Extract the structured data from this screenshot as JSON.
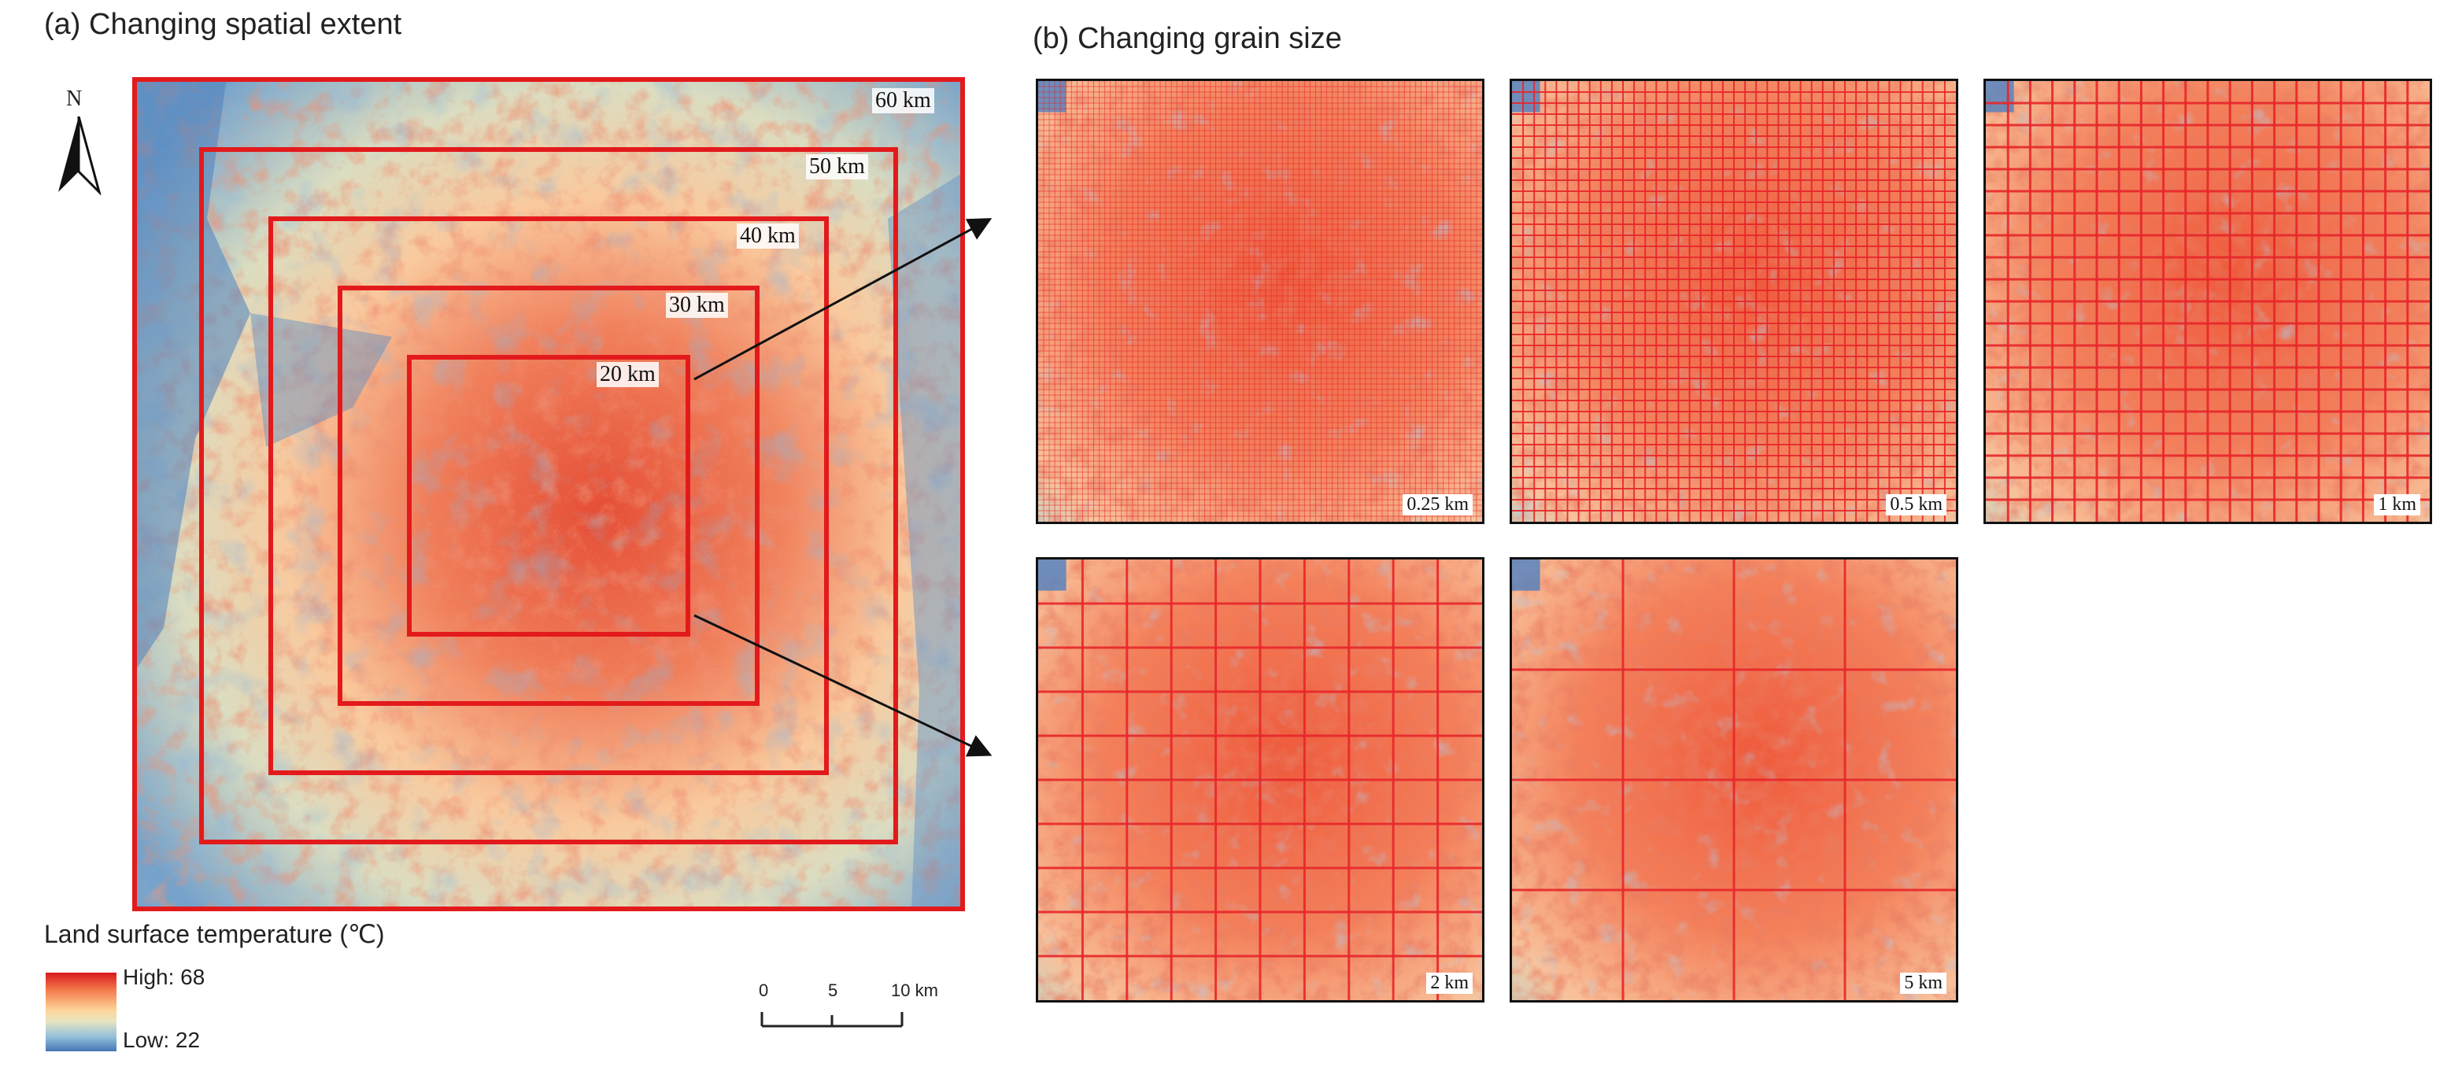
{
  "panel_a": {
    "title": "(a) Changing spatial extent",
    "north_label": "N",
    "extents": [
      {
        "label": "60 km"
      },
      {
        "label": "50 km"
      },
      {
        "label": "40 km"
      },
      {
        "label": "30 km"
      },
      {
        "label": "20 km"
      }
    ]
  },
  "panel_b": {
    "title": "(b) Changing grain size",
    "grains": [
      {
        "label": "0.25 km",
        "cells": 80
      },
      {
        "label": "0.5 km",
        "cells": 40
      },
      {
        "label": "1 km",
        "cells": 20
      },
      {
        "label": "2 km",
        "cells": 10
      },
      {
        "label": "5 km",
        "cells": 4
      }
    ]
  },
  "legend": {
    "title": "Land surface temperature (℃)",
    "high": "High: 68",
    "low": "Low: 22",
    "colors": [
      "#d7191c",
      "#f47a4c",
      "#fdd69a",
      "#e6e4c0",
      "#91bfdb",
      "#4575b4"
    ]
  },
  "scale_bar": {
    "ticks": [
      "0",
      "5",
      "10 km"
    ]
  },
  "colors": {
    "frame_red": "#e31a1c",
    "grid_red": "#e8262a"
  }
}
